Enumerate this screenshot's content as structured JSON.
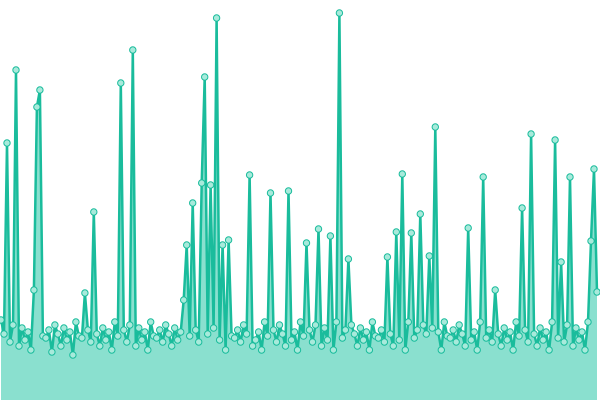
{
  "chart_data": {
    "type": "area",
    "title": "",
    "xlabel": "",
    "ylabel": "",
    "axes_visible": false,
    "grid": false,
    "markers": true,
    "ylim": [
      0,
      400
    ],
    "colors": {
      "line": "#1abc9c",
      "fill": "#8ae0cf",
      "marker_fill": "#a8eadb"
    },
    "series": [
      {
        "values": [
          80,
          66,
          257,
          58,
          75,
          330,
          54,
          72,
          60,
          68,
          50,
          110,
          293,
          310,
          64,
          62,
          70,
          48,
          75,
          66,
          54,
          72,
          60,
          68,
          45,
          78,
          64,
          62,
          107,
          70,
          58,
          188,
          66,
          54,
          72,
          60,
          68,
          50,
          78,
          64,
          317,
          70,
          58,
          75,
          350,
          54,
          72,
          60,
          68,
          50,
          78,
          64,
          62,
          70,
          58,
          75,
          66,
          54,
          72,
          60,
          68,
          100,
          155,
          64,
          197,
          70,
          58,
          217,
          323,
          66,
          215,
          72,
          382,
          60,
          155,
          50,
          160,
          64,
          62,
          70,
          58,
          75,
          66,
          225,
          54,
          60,
          68,
          50,
          78,
          64,
          207,
          70,
          58,
          75,
          66,
          54,
          209,
          60,
          68,
          50,
          78,
          64,
          157,
          70,
          58,
          75,
          171,
          54,
          72,
          60,
          164,
          50,
          78,
          387,
          62,
          70,
          141,
          75,
          66,
          54,
          72,
          60,
          68,
          50,
          78,
          64,
          62,
          70,
          58,
          143,
          66,
          54,
          168,
          60,
          226,
          50,
          78,
          167,
          62,
          70,
          186,
          75,
          66,
          144,
          72,
          273,
          68,
          50,
          78,
          64,
          62,
          70,
          58,
          75,
          66,
          54,
          172,
          60,
          68,
          50,
          78,
          223,
          62,
          70,
          58,
          110,
          66,
          54,
          72,
          60,
          68,
          50,
          78,
          64,
          192,
          70,
          58,
          266,
          66,
          54,
          72,
          60,
          68,
          50,
          78,
          260,
          62,
          138,
          58,
          75,
          223,
          54,
          72,
          60,
          68,
          50,
          78,
          159,
          231,
          108
        ]
      }
    ]
  }
}
